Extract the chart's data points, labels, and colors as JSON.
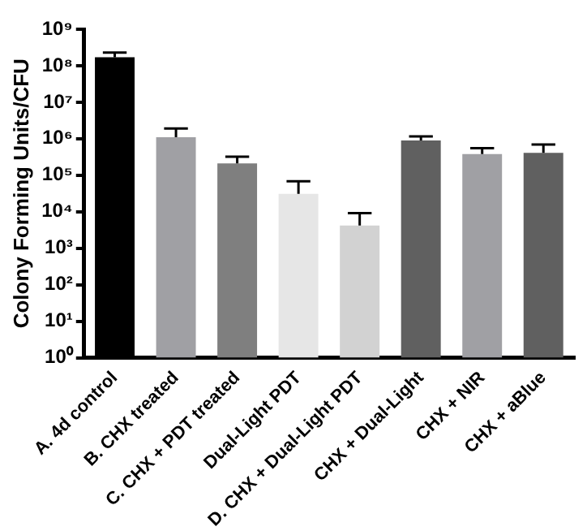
{
  "chart_data": {
    "type": "bar",
    "ylabel": "Colony Forming Units/CFU",
    "categories": [
      "A. 4d control",
      "B. CHX treated",
      "C. CHX + PDT treated",
      "Dual-Light PDT",
      "D. CHX + Dual-Light PDT",
      "CHX + Dual-Light",
      "CHX + NIR",
      "CHX + aBlue"
    ],
    "values": [
      170000000,
      1100000,
      210000,
      31000,
      4200,
      900000,
      380000,
      410000
    ],
    "errors": [
      [
        170000000,
        230000000
      ],
      [
        1100000,
        1900000
      ],
      [
        210000,
        320000
      ],
      [
        31000,
        68000
      ],
      [
        4200,
        9100
      ],
      [
        900000,
        1150000
      ],
      [
        380000,
        550000
      ],
      [
        410000,
        690000
      ]
    ],
    "colors": [
      "#000000",
      "#a0a0a4",
      "#7f7f7f",
      "#e6e6e6",
      "#d2d2d2",
      "#606060",
      "#a0a0a4",
      "#606060"
    ],
    "log": "y",
    "ylim": [
      1,
      1000000000
    ],
    "yticks": [
      {
        "value": 1,
        "label": "10⁰"
      },
      {
        "value": 10,
        "label": "10¹"
      },
      {
        "value": 100,
        "label": "10²"
      },
      {
        "value": 1000,
        "label": "10³"
      },
      {
        "value": 10000,
        "label": "10⁴"
      },
      {
        "value": 100000,
        "label": "10⁵"
      },
      {
        "value": 1000000,
        "label": "10⁶"
      },
      {
        "value": 10000000,
        "label": "10⁷"
      },
      {
        "value": 100000000,
        "label": "10⁸"
      },
      {
        "value": 1000000000,
        "label": "10⁹"
      }
    ],
    "grid": false,
    "legend": false
  }
}
